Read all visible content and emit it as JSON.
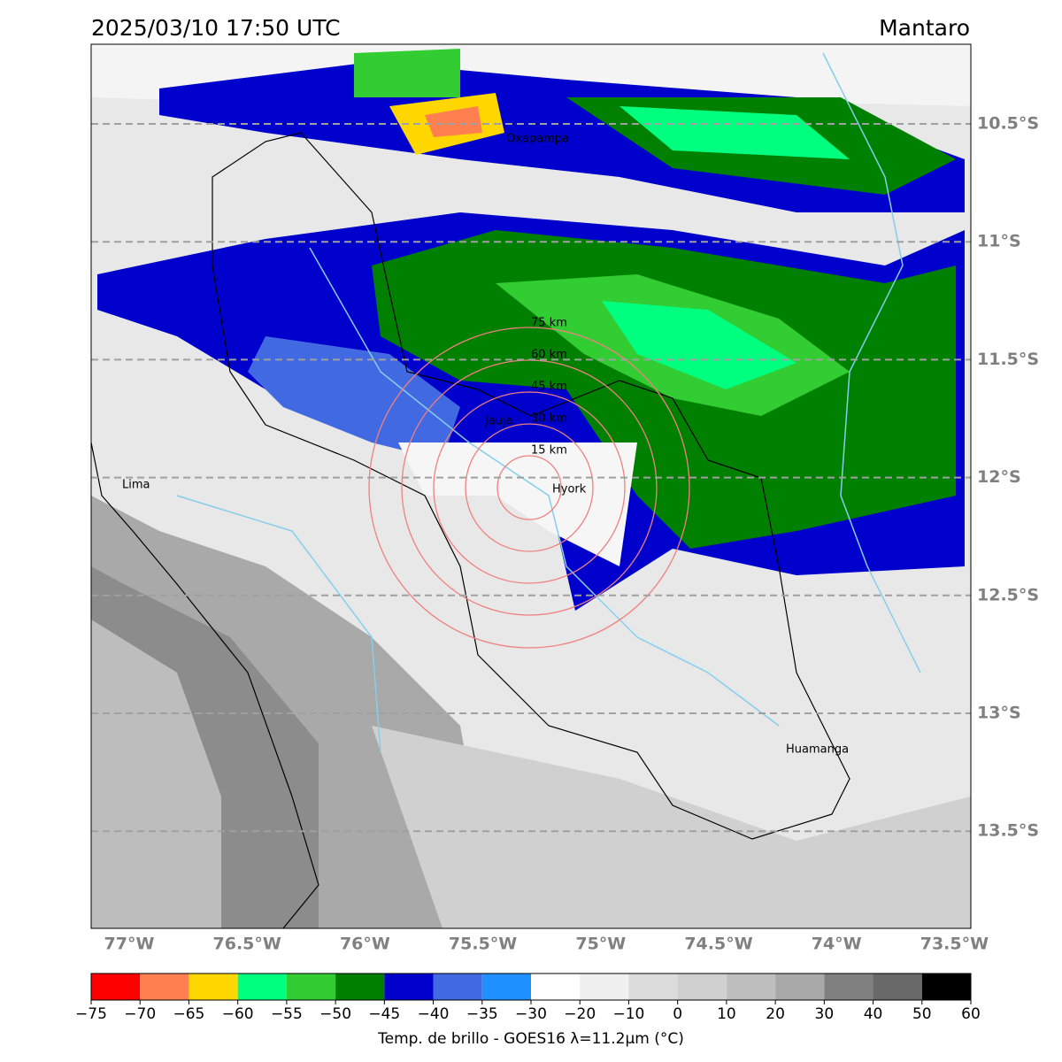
{
  "header": {
    "title": "2025/03/10 17:50 UTC",
    "region": "Mantaro"
  },
  "map": {
    "lat_labels": [
      "10.5°S",
      "11°S",
      "11.5°S",
      "12°S",
      "12.5°S",
      "13°S",
      "13.5°S"
    ],
    "lon_labels": [
      "77°W",
      "76.5°W",
      "76°W",
      "75.5°W",
      "75°W",
      "74.5°W",
      "74°W",
      "73.5°W"
    ],
    "places": [
      "Oxapampa",
      "Jauja",
      "Lima",
      "Hyork",
      "Huamanga"
    ],
    "ring_labels": [
      "75 km",
      "60 km",
      "45 km",
      "30 km",
      "15 km"
    ]
  },
  "colorbar": {
    "colors": [
      "#ff0000",
      "#ff7f50",
      "#ffd700",
      "#00ff7f",
      "#32cd32",
      "#008000",
      "#0000cd",
      "#4169e1",
      "#1e90ff",
      "#ffffff",
      "#f0f0f0",
      "#dcdcdc",
      "#d0d0d0",
      "#bebebe",
      "#a9a9a9",
      "#808080",
      "#696969",
      "#000000"
    ],
    "ticks": [
      "−75",
      "−70",
      "−65",
      "−60",
      "−55",
      "−50",
      "−45",
      "−40",
      "−35",
      "−30",
      "−20",
      "−10",
      "0",
      "10",
      "20",
      "30",
      "40",
      "50",
      "60"
    ],
    "label": "Temp. de brillo - GOES16 λ=11.2μm (°C)"
  }
}
